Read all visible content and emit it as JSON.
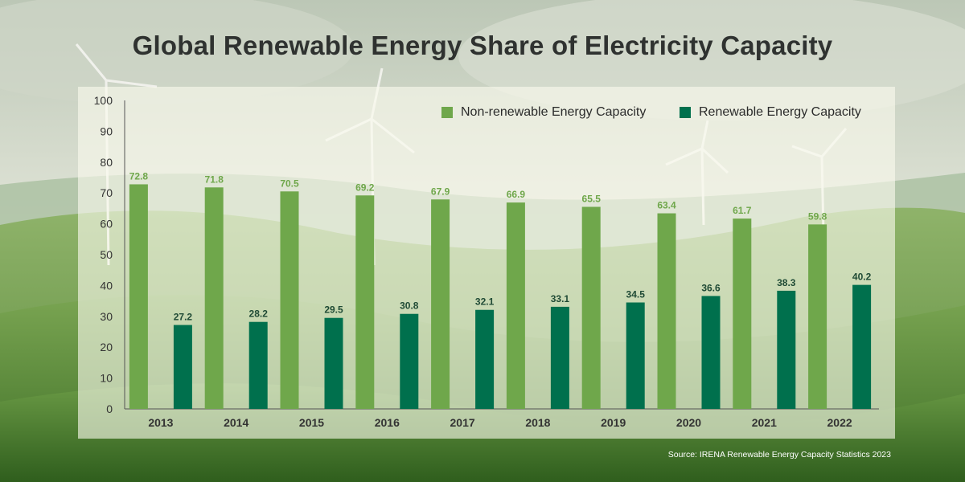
{
  "colors": {
    "nonrenewable": "#6fa74b",
    "renewable": "#00704d",
    "axis_text": "#333333",
    "value_label_nonrenewable": "#6fa74b",
    "value_label_renewable": "#1f4a35"
  },
  "source": "Source: IRENA Renewable Energy Capacity Statistics 2023",
  "chart_data": {
    "type": "bar",
    "title": "Global Renewable Energy Share of Electricity Capacity",
    "xlabel": "",
    "ylabel": "",
    "ylim": [
      0,
      100
    ],
    "yticks": [
      0,
      10,
      20,
      30,
      40,
      50,
      60,
      70,
      80,
      90,
      100
    ],
    "grid": false,
    "legend_position": "top-right",
    "categories": [
      "2013",
      "2014",
      "2015",
      "2016",
      "2017",
      "2018",
      "2019",
      "2020",
      "2021",
      "2022"
    ],
    "series": [
      {
        "name": "Non-renewable Energy Capacity",
        "values": [
          72.8,
          71.8,
          70.5,
          69.2,
          67.9,
          66.9,
          65.5,
          63.4,
          61.7,
          59.8
        ]
      },
      {
        "name": "Renewable Energy Capacity",
        "values": [
          27.2,
          28.2,
          29.5,
          30.8,
          32.1,
          33.1,
          34.5,
          36.6,
          38.3,
          40.2
        ]
      }
    ]
  }
}
